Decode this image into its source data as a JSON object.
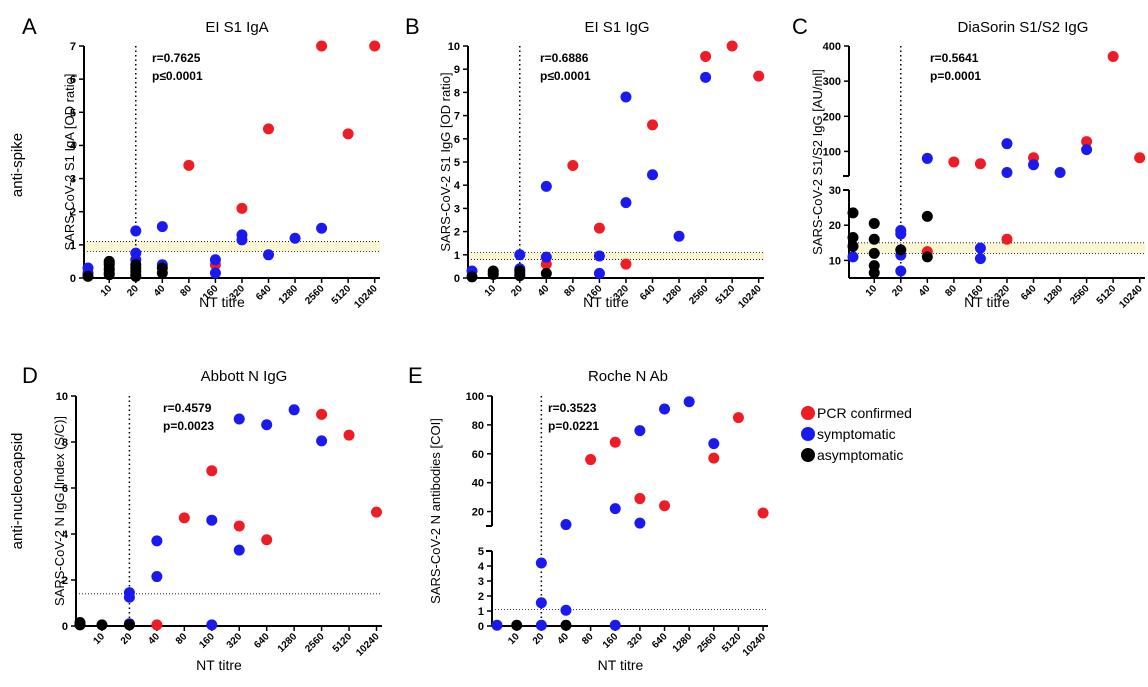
{
  "row_labels": [
    "anti-spike",
    "anti-nucleocapsid"
  ],
  "legend": [
    {
      "label": "PCR confirmed",
      "color": "#ee1c25"
    },
    {
      "label": "symptomatic",
      "color": "#1a1aee"
    },
    {
      "label": "asymptomatic",
      "color": "#000000"
    }
  ],
  "x_categories": [
    "10",
    "20",
    "40",
    "80",
    "160",
    "320",
    "640",
    "1280",
    "2560",
    "5120",
    "10240"
  ],
  "chart_data": [
    {
      "type": "scatter",
      "letter": "A",
      "title": "EI S1 IgA",
      "ylabel": "SARS-CoV-2 S1 IgA  [OD ratio]",
      "xlabel": "NT titre",
      "ylim": [
        0,
        7
      ],
      "yticks": [
        0,
        1,
        2,
        3,
        4,
        5,
        6,
        7
      ],
      "stats": [
        "r=0.7625",
        "p≤0.0001"
      ],
      "cutoff_band": [
        0.8,
        1.1
      ],
      "series": [
        {
          "name": "PCR confirmed",
          "color": "#ee1c25",
          "points": [
            [
              3,
              3.4
            ],
            [
              4,
              0.4
            ],
            [
              5,
              2.1
            ],
            [
              6,
              4.5
            ],
            [
              8,
              7.0
            ],
            [
              9,
              4.35
            ],
            [
              10,
              7.0
            ]
          ]
        },
        {
          "name": "symptomatic",
          "color": "#1a1aee",
          "points": [
            [
              -0.8,
              0.3
            ],
            [
              -0.8,
              0.15
            ],
            [
              0,
              0.45
            ],
            [
              0,
              0.3
            ],
            [
              1,
              1.42
            ],
            [
              1,
              0.75
            ],
            [
              1,
              0.55
            ],
            [
              2,
              1.55
            ],
            [
              2,
              0.4
            ],
            [
              4,
              0.55
            ],
            [
              4,
              0.15
            ],
            [
              5,
              1.3
            ],
            [
              5,
              1.15
            ],
            [
              6,
              0.7
            ],
            [
              7,
              1.2
            ],
            [
              8,
              1.5
            ]
          ]
        },
        {
          "name": "asymptomatic",
          "color": "#000000",
          "points": [
            [
              -0.8,
              0.05
            ],
            [
              0,
              0.5
            ],
            [
              0,
              0.4
            ],
            [
              0,
              0.25
            ],
            [
              0,
              0.15
            ],
            [
              0,
              0.1
            ],
            [
              1,
              0.4
            ],
            [
              1,
              0.3
            ],
            [
              1,
              0.2
            ],
            [
              1,
              0.1
            ],
            [
              1,
              0.05
            ],
            [
              2,
              0.3
            ],
            [
              2,
              0.15
            ]
          ]
        }
      ]
    },
    {
      "type": "scatter",
      "letter": "B",
      "title": "EI S1 IgG",
      "ylabel": "SARS-CoV-2 S1 IgG  [OD ratio]",
      "xlabel": "NT titre",
      "ylim": [
        0,
        10
      ],
      "yticks": [
        0,
        1,
        2,
        3,
        4,
        5,
        6,
        7,
        8,
        9,
        10
      ],
      "stats": [
        "r=0.6886",
        "p≤0.0001"
      ],
      "cutoff_band": [
        0.8,
        1.1
      ],
      "series": [
        {
          "name": "PCR confirmed",
          "color": "#ee1c25",
          "points": [
            [
              2,
              0.6
            ],
            [
              3,
              4.85
            ],
            [
              4,
              2.15
            ],
            [
              5,
              0.6
            ],
            [
              6,
              6.6
            ],
            [
              8,
              9.55
            ],
            [
              9,
              10.0
            ],
            [
              10,
              8.7
            ]
          ]
        },
        {
          "name": "symptomatic",
          "color": "#1a1aee",
          "points": [
            [
              -0.8,
              0.3
            ],
            [
              0,
              0.2
            ],
            [
              1,
              1.0
            ],
            [
              1,
              0.4
            ],
            [
              1,
              0.2
            ],
            [
              2,
              3.95
            ],
            [
              2,
              0.9
            ],
            [
              4,
              0.95
            ],
            [
              4,
              0.2
            ],
            [
              5,
              7.8
            ],
            [
              5,
              3.25
            ],
            [
              6,
              4.45
            ],
            [
              7,
              1.8
            ],
            [
              8,
              8.65
            ]
          ]
        },
        {
          "name": "asymptomatic",
          "color": "#000000",
          "points": [
            [
              -0.8,
              0.05
            ],
            [
              0,
              0.3
            ],
            [
              0,
              0.15
            ],
            [
              1,
              0.3
            ],
            [
              1,
              0.1
            ],
            [
              2,
              0.2
            ]
          ]
        }
      ]
    },
    {
      "type": "scatter",
      "letter": "C",
      "title": "DiaSorin S1/S2 IgG",
      "ylabel": "SARS-CoV-2 S1/S2 IgG [AU/ml]",
      "xlabel": "NT titre",
      "broken_axis": true,
      "lower": {
        "ylim": [
          5,
          30
        ],
        "yticks": [
          10,
          20,
          30
        ]
      },
      "upper": {
        "ylim": [
          30,
          400
        ],
        "yticks": [
          100,
          200,
          300,
          400
        ]
      },
      "stats": [
        "r=0.5641",
        "p=0.0001"
      ],
      "cutoff_band": [
        12,
        15
      ],
      "series": [
        {
          "name": "PCR confirmed",
          "color": "#ee1c25",
          "points": [
            [
              2,
              12.5
            ],
            [
              3,
              70
            ],
            [
              4,
              65
            ],
            [
              5,
              16
            ],
            [
              6,
              82
            ],
            [
              8,
              128
            ],
            [
              9,
              370
            ],
            [
              10,
              82
            ]
          ]
        },
        {
          "name": "symptomatic",
          "color": "#1a1aee",
          "points": [
            [
              -0.8,
              11
            ],
            [
              1,
              18.5
            ],
            [
              1,
              17.5
            ],
            [
              1,
              11.5
            ],
            [
              1,
              7
            ],
            [
              2,
              80
            ],
            [
              4,
              13.5
            ],
            [
              4,
              10.5
            ],
            [
              5,
              122
            ],
            [
              5,
              40
            ],
            [
              6,
              62
            ],
            [
              7,
              40
            ],
            [
              8,
              105
            ]
          ]
        },
        {
          "name": "asymptomatic",
          "color": "#000000",
          "points": [
            [
              -0.8,
              23.5
            ],
            [
              -0.8,
              16.5
            ],
            [
              -0.8,
              14
            ],
            [
              0,
              20.5
            ],
            [
              0,
              16
            ],
            [
              0,
              12
            ],
            [
              0,
              8.5
            ],
            [
              0,
              6.5
            ],
            [
              1,
              13
            ],
            [
              2,
              22.5
            ],
            [
              2,
              11
            ]
          ]
        }
      ]
    },
    {
      "type": "scatter",
      "letter": "D",
      "title": "Abbott N IgG",
      "ylabel": "SARS-CoV-2 N IgG [Index (S/C)]",
      "xlabel": "NT titre",
      "ylim": [
        0,
        10
      ],
      "yticks": [
        0,
        2,
        4,
        6,
        8,
        10
      ],
      "stats": [
        "r=0.4579",
        "p=0.0023"
      ],
      "cutoff_line": 1.4,
      "series": [
        {
          "name": "PCR confirmed",
          "color": "#ee1c25",
          "points": [
            [
              2,
              0.05
            ],
            [
              3,
              4.7
            ],
            [
              4,
              6.75
            ],
            [
              5,
              4.35
            ],
            [
              6,
              3.75
            ],
            [
              8,
              9.2
            ],
            [
              9,
              8.3
            ],
            [
              10,
              4.95
            ]
          ]
        },
        {
          "name": "symptomatic",
          "color": "#1a1aee",
          "points": [
            [
              -0.8,
              0.1
            ],
            [
              1,
              1.45
            ],
            [
              1,
              1.25
            ],
            [
              1,
              0.1
            ],
            [
              2,
              3.7
            ],
            [
              2,
              2.15
            ],
            [
              4,
              4.6
            ],
            [
              4,
              0.05
            ],
            [
              5,
              9.0
            ],
            [
              5,
              3.3
            ],
            [
              6,
              8.75
            ],
            [
              7,
              9.4
            ],
            [
              8,
              8.05
            ]
          ]
        },
        {
          "name": "asymptomatic",
          "color": "#000000",
          "points": [
            [
              -0.8,
              0.15
            ],
            [
              -0.8,
              0.05
            ],
            [
              0,
              0.05
            ],
            [
              1,
              0.05
            ]
          ]
        }
      ]
    },
    {
      "type": "scatter",
      "letter": "E",
      "title": "Roche N Ab",
      "ylabel": "SARS-CoV-2 N antibodies [COI]",
      "xlabel": "NT titre",
      "broken_axis": true,
      "lower": {
        "ylim": [
          0,
          5
        ],
        "yticks": [
          0,
          1,
          2,
          3,
          4,
          5
        ]
      },
      "upper": {
        "ylim": [
          10,
          100
        ],
        "yticks": [
          20,
          40,
          60,
          80,
          100
        ]
      },
      "stats": [
        "r=0.3523",
        "p=0.0221"
      ],
      "cutoff_line": 1.1,
      "series": [
        {
          "name": "PCR confirmed",
          "color": "#ee1c25",
          "points": [
            [
              3,
              56
            ],
            [
              4,
              68
            ],
            [
              5,
              29
            ],
            [
              6,
              24
            ],
            [
              8,
              57
            ],
            [
              9,
              85
            ],
            [
              10,
              19
            ]
          ]
        },
        {
          "name": "symptomatic",
          "color": "#1a1aee",
          "points": [
            [
              -0.8,
              0.05
            ],
            [
              1,
              4.2
            ],
            [
              1,
              1.55
            ],
            [
              1,
              0.05
            ],
            [
              2,
              11
            ],
            [
              2,
              1.05
            ],
            [
              4,
              22
            ],
            [
              4,
              0.05
            ],
            [
              5,
              76
            ],
            [
              5,
              12
            ],
            [
              6,
              91
            ],
            [
              7,
              96
            ],
            [
              8,
              67
            ]
          ]
        },
        {
          "name": "asymptomatic",
          "color": "#000000",
          "points": [
            [
              0,
              0.05
            ],
            [
              2,
              0.05
            ]
          ]
        }
      ]
    }
  ]
}
